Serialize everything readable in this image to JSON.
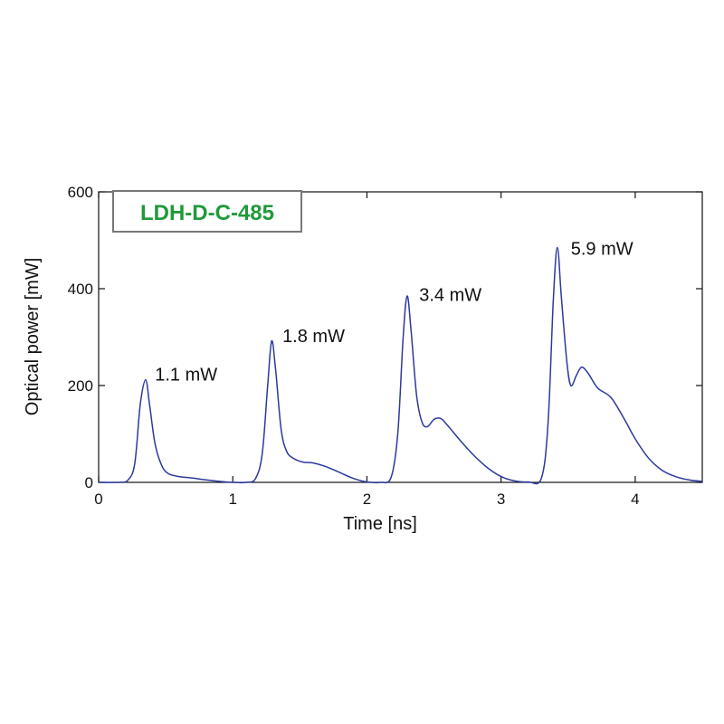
{
  "chart_data": {
    "type": "line",
    "xlabel": "Time [ns]",
    "ylabel": "Optical power [mW]",
    "xlim": [
      0,
      4.5
    ],
    "ylim": [
      0,
      600
    ],
    "xticks": [
      0,
      1,
      2,
      3,
      4
    ],
    "yticks": [
      0,
      200,
      400,
      600
    ],
    "grid": false,
    "legend_box": {
      "text": "LDH-D-C-485",
      "color": "#1f9a3a",
      "placement": "top-left"
    },
    "line_color": "#2b3a9c",
    "annotations": [
      {
        "text": "1.1 mW",
        "x": 0.42,
        "y": 210
      },
      {
        "text": "1.8 mW",
        "x": 1.37,
        "y": 290
      },
      {
        "text": "3.4 mW",
        "x": 2.39,
        "y": 375
      },
      {
        "text": "5.9 mW",
        "x": 3.52,
        "y": 470
      }
    ],
    "series": [
      {
        "values": [
          [
            0.0,
            0
          ],
          [
            0.15,
            0
          ],
          [
            0.22,
            5
          ],
          [
            0.27,
            40
          ],
          [
            0.31,
            160
          ],
          [
            0.35,
            212
          ],
          [
            0.38,
            160
          ],
          [
            0.42,
            80
          ],
          [
            0.47,
            35
          ],
          [
            0.52,
            18
          ],
          [
            0.6,
            12
          ],
          [
            0.7,
            9
          ],
          [
            0.8,
            5
          ],
          [
            0.9,
            2
          ],
          [
            1.0,
            0
          ],
          [
            1.1,
            0
          ],
          [
            1.17,
            8
          ],
          [
            1.22,
            60
          ],
          [
            1.26,
            200
          ],
          [
            1.29,
            292
          ],
          [
            1.32,
            230
          ],
          [
            1.36,
            110
          ],
          [
            1.4,
            65
          ],
          [
            1.45,
            50
          ],
          [
            1.52,
            42
          ],
          [
            1.6,
            40
          ],
          [
            1.7,
            32
          ],
          [
            1.8,
            20
          ],
          [
            1.9,
            8
          ],
          [
            2.0,
            1
          ],
          [
            2.1,
            0
          ],
          [
            2.18,
            10
          ],
          [
            2.23,
            100
          ],
          [
            2.27,
            300
          ],
          [
            2.3,
            385
          ],
          [
            2.33,
            310
          ],
          [
            2.37,
            180
          ],
          [
            2.41,
            125
          ],
          [
            2.45,
            115
          ],
          [
            2.5,
            130
          ],
          [
            2.55,
            132
          ],
          [
            2.6,
            118
          ],
          [
            2.7,
            85
          ],
          [
            2.8,
            55
          ],
          [
            2.9,
            30
          ],
          [
            3.0,
            12
          ],
          [
            3.1,
            3
          ],
          [
            3.2,
            1
          ],
          [
            3.3,
            8
          ],
          [
            3.35,
            120
          ],
          [
            3.39,
            380
          ],
          [
            3.42,
            485
          ],
          [
            3.45,
            380
          ],
          [
            3.49,
            250
          ],
          [
            3.52,
            200
          ],
          [
            3.56,
            220
          ],
          [
            3.6,
            238
          ],
          [
            3.65,
            225
          ],
          [
            3.72,
            195
          ],
          [
            3.82,
            175
          ],
          [
            3.92,
            130
          ],
          [
            4.0,
            90
          ],
          [
            4.1,
            50
          ],
          [
            4.2,
            25
          ],
          [
            4.3,
            12
          ],
          [
            4.4,
            5
          ],
          [
            4.5,
            2
          ]
        ]
      }
    ]
  }
}
